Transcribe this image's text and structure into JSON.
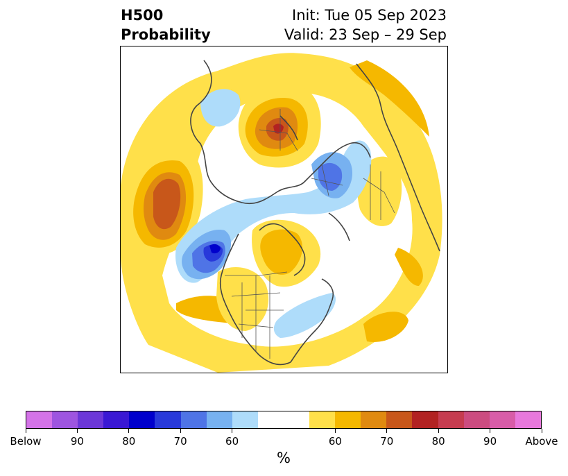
{
  "title": {
    "left_line1": "H500",
    "left_line2": "Probability",
    "right_line1": "Init: Tue 05 Sep 2023",
    "right_line2": "Valid: 23 Sep – 29 Sep"
  },
  "colorbar": {
    "unit": "%",
    "colors": [
      "#d473e8",
      "#9e55e0",
      "#6c37d8",
      "#3a18d4",
      "#0000cc",
      "#2839da",
      "#4f74e6",
      "#77b1f0",
      "#aedcfa",
      "#ffffff",
      "#ffe04a",
      "#f5b800",
      "#e08a10",
      "#c8571a",
      "#b22222",
      "#c63c50",
      "#cc4c80",
      "#d85ca8",
      "#e878dc"
    ],
    "tick_labels": [
      "Below",
      "90",
      "80",
      "70",
      "60",
      "60",
      "70",
      "80",
      "90",
      "Above"
    ]
  },
  "colors": {
    "y60": "#ffe04a",
    "y65": "#f5b800",
    "o70": "#e08a10",
    "o75": "#c8571a",
    "r80": "#b22222",
    "b60": "#aedcfa",
    "b65": "#77b1f0",
    "b70": "#4f74e6",
    "b75": "#2839da",
    "b80": "#0000cc",
    "coast": "#444444"
  }
}
